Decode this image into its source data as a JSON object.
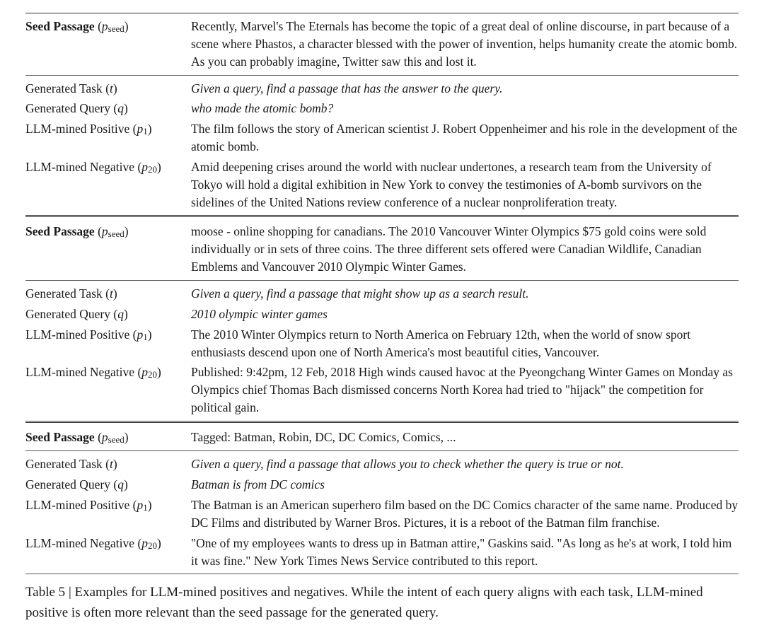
{
  "labels": {
    "seed": "Seed Passage",
    "seed_sub": "seed",
    "task": "Generated Task",
    "query": "Generated Query",
    "pos": "LLM-mined Positive",
    "neg": "LLM-mined Negative",
    "p_sub": "p",
    "t_sub": "t",
    "q_sub": "q",
    "p1_sub": "1",
    "p20_sub": "20"
  },
  "ex1": {
    "seed": "Recently, Marvel's The Eternals has become the topic of a great deal of online discourse, in part because of a scene where Phastos, a character blessed with the power of invention, helps humanity create the atomic bomb. As you can probably imagine, Twitter saw this and lost it.",
    "task": "Given a query, find a passage that has the answer to the query.",
    "query": "who made the atomic bomb?",
    "pos": "The film follows the story of American scientist J. Robert Oppenheimer and his role in the development of the atomic bomb.",
    "neg": "Amid deepening crises around the world with nuclear undertones, a research team from the University of Tokyo will hold a digital exhibition in New York to convey the testimonies of A-bomb survivors on the sidelines of the United Nations review conference of a nuclear nonproliferation treaty."
  },
  "ex2": {
    "seed": "moose - online shopping for canadians. The 2010 Vancouver Winter Olympics $75 gold coins were sold individually or in sets of three coins. The three different sets offered were Canadian Wildlife, Canadian Emblems and Vancouver 2010 Olympic Winter Games.",
    "task": "Given a query, find a passage that might show up as a search result.",
    "query": "2010 olympic winter games",
    "pos": "The 2010 Winter Olympics return to North America on February 12th, when the world of snow sport enthusiasts descend upon one of North America's most beautiful cities, Vancouver.",
    "neg": "Published: 9:42pm, 12 Feb, 2018 High winds caused havoc at the Pyeongchang Winter Games on Monday as Olympics chief Thomas Bach dismissed concerns North Korea had tried to \"hijack\" the competition for political gain."
  },
  "ex3": {
    "seed": "Tagged: Batman, Robin, DC, DC Comics, Comics, ...",
    "task": "Given a query, find a passage that allows you to check whether the query is true or not.",
    "query": "Batman is from DC comics",
    "pos": "The Batman is an American superhero film based on the DC Comics character of the same name. Produced by DC Films and distributed by Warner Bros. Pictures, it is a reboot of the Batman film franchise.",
    "neg": "\"One of my employees wants to dress up in Batman attire,\" Gaskins said. \"As long as he's at work, I told him it was fine.\" New York Times News Service contributed to this report."
  },
  "caption": {
    "tag": "Table 5",
    "sep": " | ",
    "text": "Examples for LLM-mined positives and negatives. While the intent of each query aligns with each task, LLM-mined positive is often more relevant than the seed passage for the generated query."
  }
}
